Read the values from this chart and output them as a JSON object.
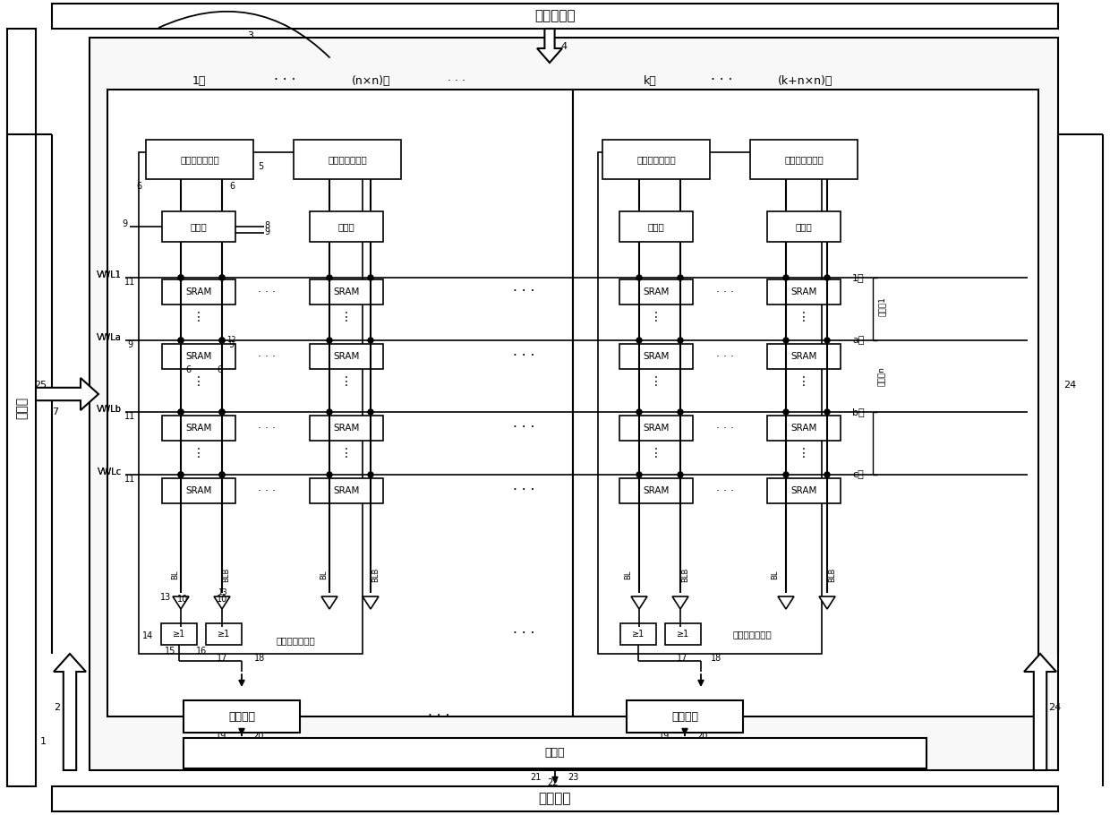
{
  "bg": "#ffffff",
  "lc": "#000000",
  "title_top": "移位寄存器",
  "title_bot": "激活函数",
  "title_ctrl": "控制器",
  "label_input": "输入及反相输入",
  "label_pre": "预充电",
  "label_sram": "SRAM",
  "label_cim": "内存内计算模块",
  "label_detect": "检测转换",
  "label_norm": "归一化",
  "col1": "1列",
  "col2": "(n×n)列",
  "col3": "k列",
  "col4": "(k+n×n)列",
  "row1": "1行",
  "rowa": "a行",
  "rowb": "b行",
  "rowc": "c行",
  "vwl1": "VWL1",
  "vwla": "VWLa",
  "vwlb": "VWLb",
  "vwlc": "VWLc",
  "grp1": "串等组1",
  "grpn": "串等组n"
}
